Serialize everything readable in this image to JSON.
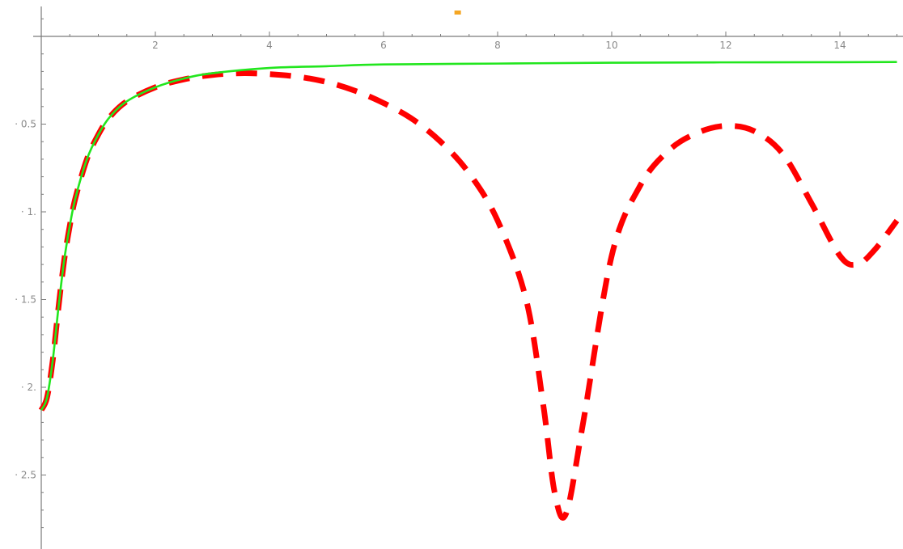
{
  "chart_data": {
    "type": "line",
    "xlim": [
      0,
      15
    ],
    "ylim": [
      -2.85,
      0.15
    ],
    "x_ticks": [
      {
        "value": 2,
        "label": "2"
      },
      {
        "value": 4,
        "label": "4"
      },
      {
        "value": 6,
        "label": "6"
      },
      {
        "value": 8,
        "label": "8"
      },
      {
        "value": 10,
        "label": "10"
      },
      {
        "value": 12,
        "label": "12"
      },
      {
        "value": 14,
        "label": "14"
      }
    ],
    "y_ticks": [
      {
        "value": -0.5,
        "label": "0.5"
      },
      {
        "value": -1.0,
        "label": "1."
      },
      {
        "value": -1.5,
        "label": "1.5"
      },
      {
        "value": -2.0,
        "label": "2."
      },
      {
        "value": -2.5,
        "label": "2.5"
      }
    ],
    "x_minor_step": 0.5,
    "y_minor_step": 0.1,
    "grid": false,
    "series": [
      {
        "style": "solid",
        "color": "#22e61e",
        "x": [
          0,
          0.1,
          0.2,
          0.3,
          0.4,
          0.5,
          0.6,
          0.8,
          1.0,
          1.2,
          1.5,
          2.0,
          2.5,
          3.0,
          4.0,
          5.0,
          6.0,
          8.0,
          10.0,
          12.0,
          14.0,
          15.0
        ],
        "y": [
          -2.13,
          -2.06,
          -1.85,
          -1.55,
          -1.28,
          -1.08,
          -0.92,
          -0.7,
          -0.56,
          -0.46,
          -0.37,
          -0.29,
          -0.24,
          -0.21,
          -0.18,
          -0.17,
          -0.16,
          -0.155,
          -0.15,
          -0.148,
          -0.147,
          -0.146
        ]
      },
      {
        "style": "dashed",
        "color": "#ff0000",
        "x": [
          0,
          0.1,
          0.2,
          0.3,
          0.4,
          0.5,
          0.6,
          0.8,
          1.0,
          1.2,
          1.5,
          2.0,
          2.5,
          3.0,
          3.5,
          4.0,
          4.5,
          5.0,
          5.5,
          6.0,
          6.5,
          7.0,
          7.5,
          8.0,
          8.5,
          8.8,
          9.0,
          9.2,
          9.5,
          10.0,
          10.5,
          11.0,
          11.5,
          12.0,
          12.5,
          13.0,
          13.5,
          14.0,
          14.3,
          14.6,
          15.0
        ],
        "y": [
          -2.13,
          -2.06,
          -1.85,
          -1.55,
          -1.28,
          -1.08,
          -0.92,
          -0.7,
          -0.56,
          -0.46,
          -0.37,
          -0.29,
          -0.245,
          -0.22,
          -0.21,
          -0.215,
          -0.23,
          -0.26,
          -0.31,
          -0.38,
          -0.47,
          -0.6,
          -0.78,
          -1.05,
          -1.5,
          -2.1,
          -2.6,
          -2.72,
          -2.2,
          -1.25,
          -0.85,
          -0.65,
          -0.55,
          -0.51,
          -0.54,
          -0.67,
          -0.95,
          -1.25,
          -1.3,
          -1.22,
          -1.05
        ]
      }
    ],
    "annotations": [
      {
        "type": "marker",
        "color": "#f5a623",
        "x": 7.3,
        "y": 0.1
      }
    ]
  }
}
